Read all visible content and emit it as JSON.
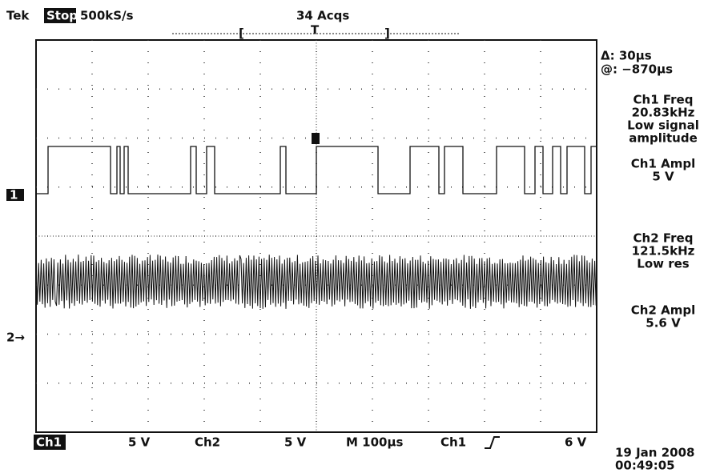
{
  "header": {
    "brand": "Tek",
    "state": "Stop",
    "rate": "500kS/s",
    "acqs": "34 Acqs",
    "trigger_bar": [
      "[",
      "T",
      "]"
    ]
  },
  "side_panel": {
    "cursor_delta": "Δ: 30µs",
    "cursor_at": "@: −870µs",
    "measurements": [
      {
        "label": "Ch1 Freq",
        "lines": [
          "20.83kHz",
          "Low signal",
          "amplitude"
        ]
      },
      {
        "label": "Ch1 Ampl",
        "lines": [
          "5 V"
        ]
      },
      {
        "label": "Ch2 Freq",
        "lines": [
          "121.5kHz",
          "Low res"
        ]
      },
      {
        "label": "Ch2 Ampl",
        "lines": [
          "5.6 V"
        ]
      }
    ]
  },
  "markers": {
    "ch1": "1",
    "ch2": "2→"
  },
  "footer": {
    "ch1_label": "Ch1",
    "ch1_scale": "5 V",
    "ch2_label": "Ch2",
    "ch2_scale": "5 V",
    "timebase": "M 100µs",
    "trigger_source": "Ch1",
    "trigger_level": "6 V",
    "date": "19 Jan 2008",
    "time": "00:49:05"
  }
}
